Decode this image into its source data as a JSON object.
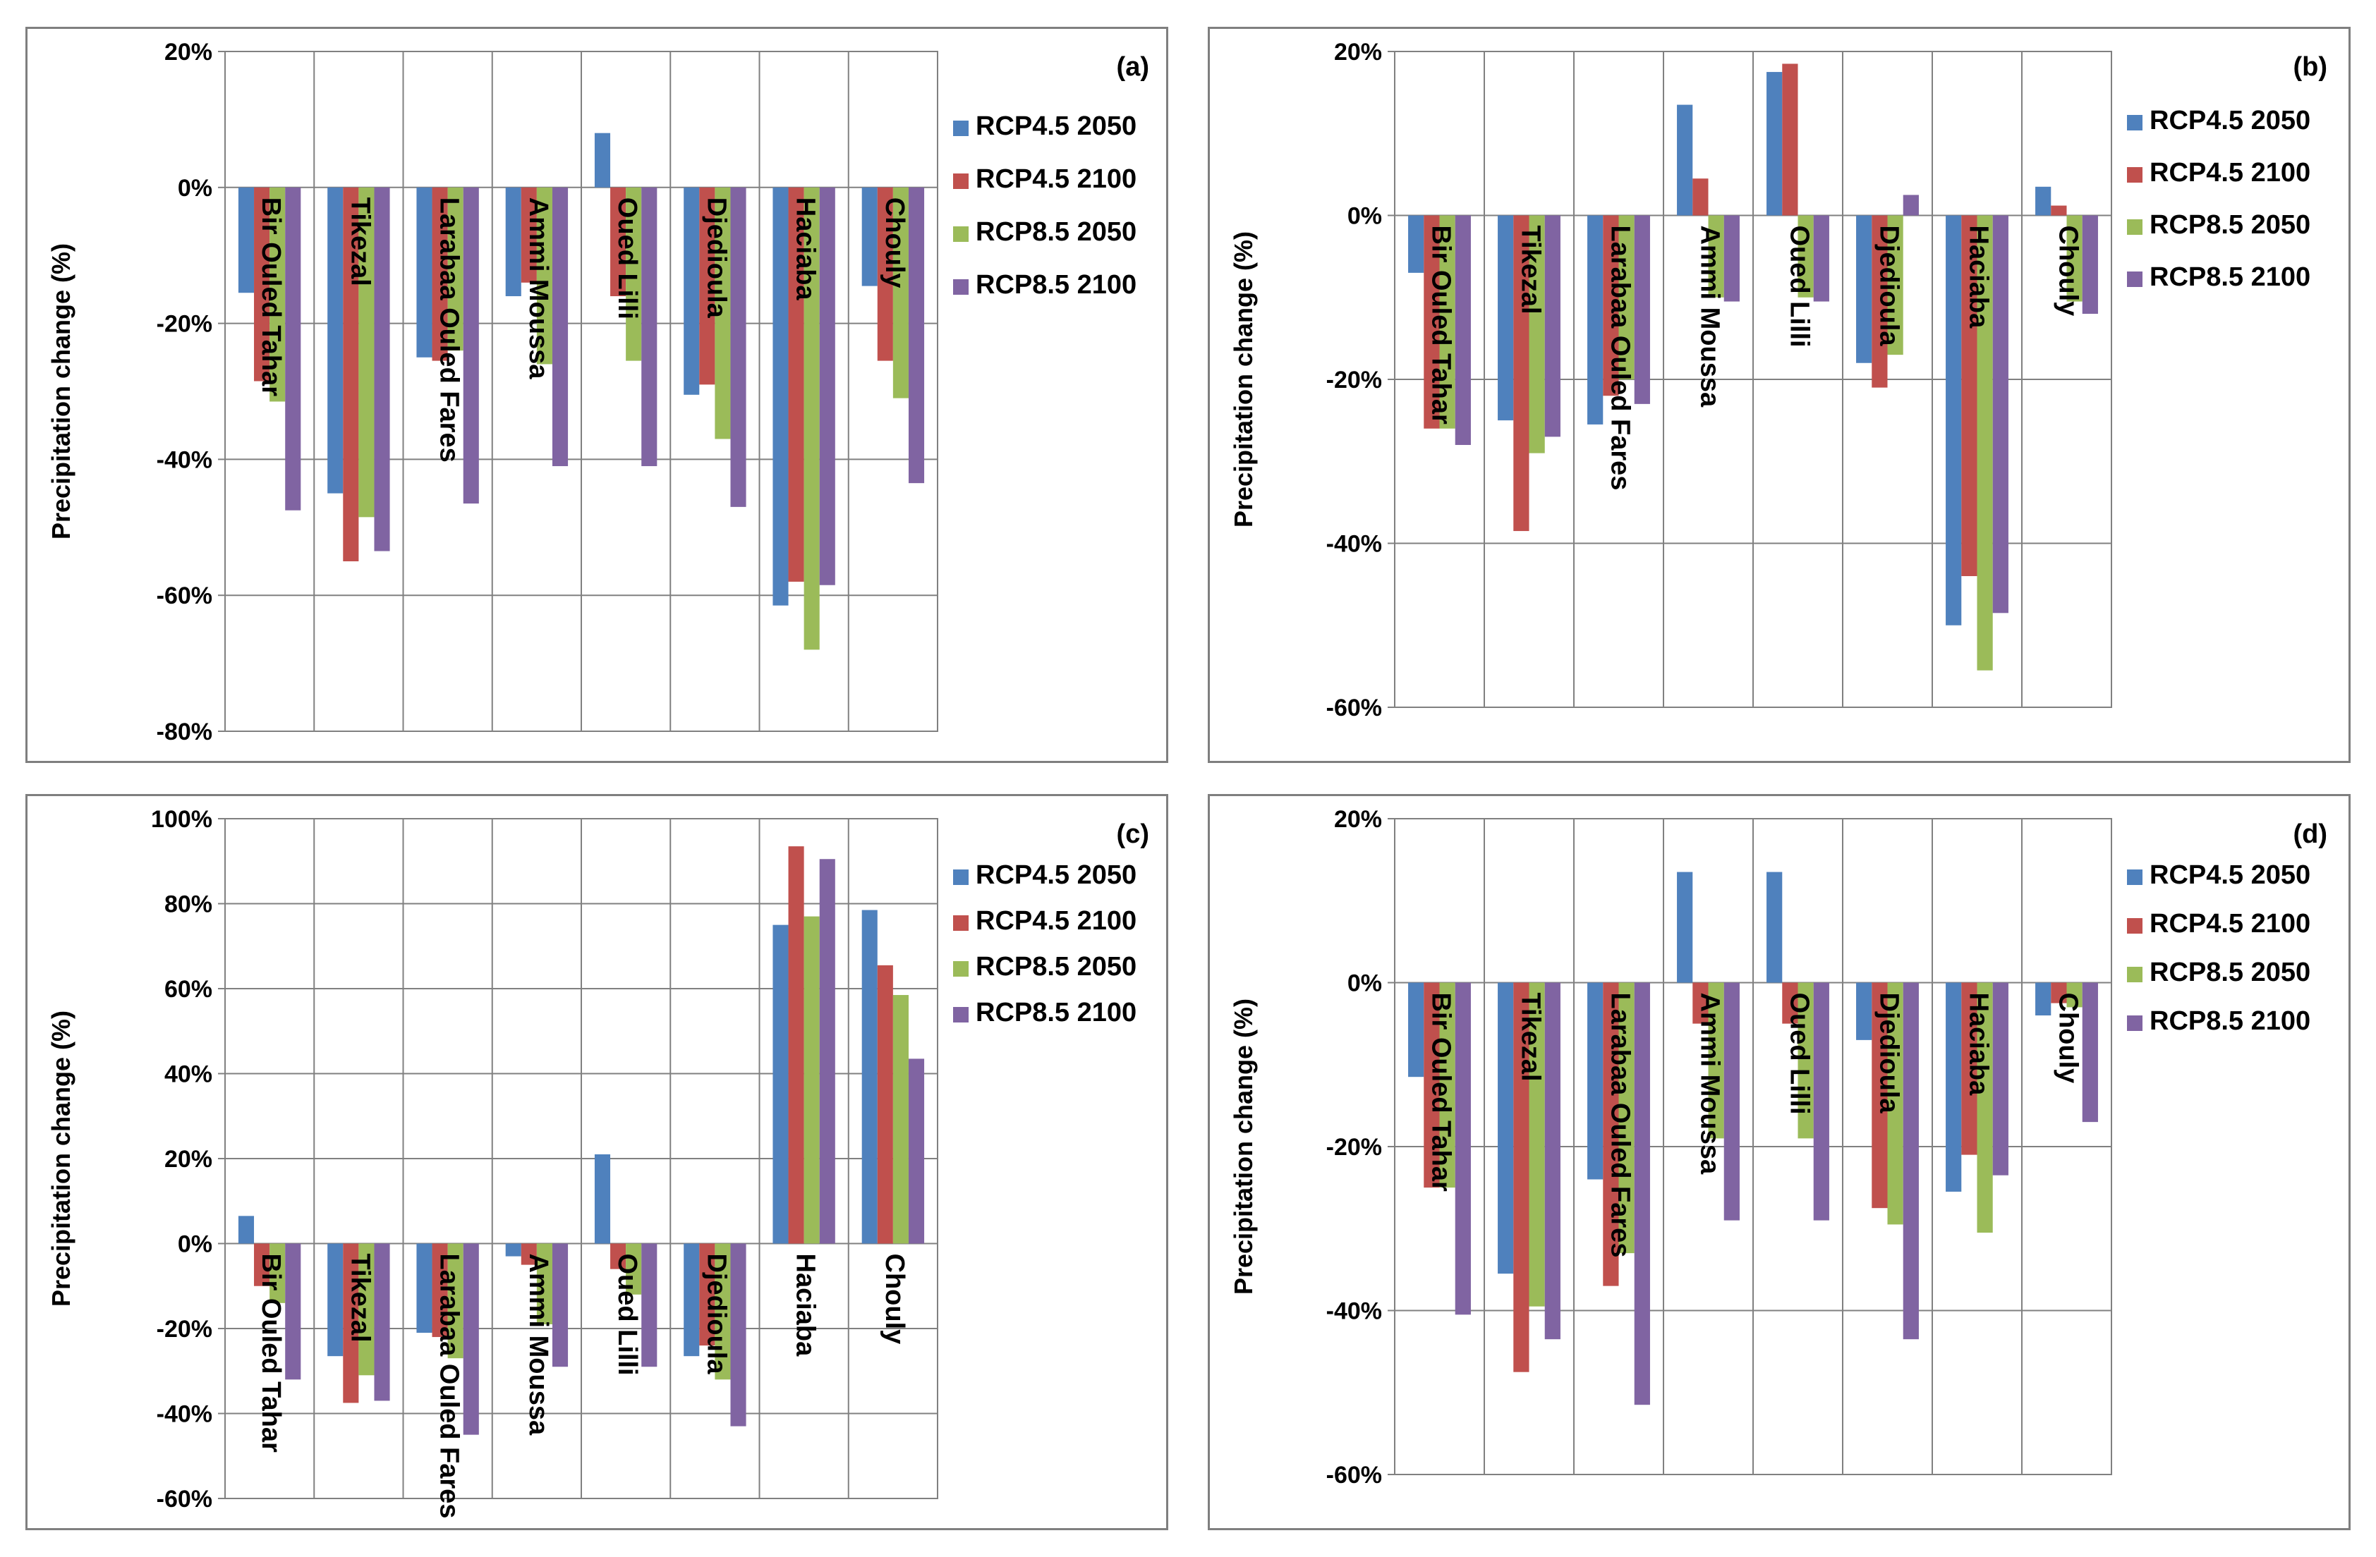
{
  "colors": {
    "RCP4.5 2050": "#4f81bd",
    "RCP4.5 2100": "#c0504d",
    "RCP8.5 2050": "#9bbb59",
    "RCP8.5 2100": "#8064a2"
  },
  "chart_data": [
    {
      "type": "bar",
      "panel_label": "(a)",
      "ylabel": "Precipitation change (%)",
      "ylim": [
        -80,
        20
      ],
      "yticks": [
        20,
        0,
        -20,
        -40,
        -60,
        -80
      ],
      "ytick_labels": [
        "20%",
        "0%",
        "-20%",
        "-40%",
        "-60%",
        "-80%"
      ],
      "categories": [
        "Bir Ouled Tahar",
        "Tikezal",
        "Larabaa Ouled Fares",
        "Ammi Moussa",
        "Oued Lilli",
        "Djedioula",
        "Haciaba",
        "Chouly"
      ],
      "series": [
        {
          "name": "RCP4.5 2050",
          "values": [
            -15.5,
            -45,
            -25,
            -16,
            8,
            -30.5,
            -61.5,
            -14.5
          ]
        },
        {
          "name": "RCP4.5 2100",
          "values": [
            -28.5,
            -55,
            -25.5,
            -14,
            -16,
            -29,
            -58,
            -25.5
          ]
        },
        {
          "name": "RCP8.5 2050",
          "values": [
            -31.5,
            -48.5,
            -24,
            -26,
            -25.5,
            -37,
            -68,
            -31
          ]
        },
        {
          "name": "RCP8.5 2100",
          "values": [
            -47.5,
            -53.5,
            -46.5,
            -41,
            -41,
            -47,
            -58.5,
            -43.5
          ]
        }
      ]
    },
    {
      "type": "bar",
      "panel_label": "(b)",
      "ylabel": "Precipitation change (%)",
      "ylim": [
        -60,
        20
      ],
      "yticks": [
        20,
        0,
        -20,
        -40,
        -60
      ],
      "ytick_labels": [
        "20%",
        "0%",
        "-20%",
        "-40%",
        "-60%"
      ],
      "categories": [
        "Bir Ouled Tahar",
        "Tikezal",
        "Larabaa Ouled Fares",
        "Ammi Moussa",
        "Oued Lilli",
        "Djedioula",
        "Haciaba",
        "Chouly"
      ],
      "series": [
        {
          "name": "RCP4.5 2050",
          "values": [
            -7,
            -25,
            -25.5,
            13.5,
            17.5,
            -18,
            -50,
            3.5
          ]
        },
        {
          "name": "RCP4.5 2100",
          "values": [
            -26,
            -38.5,
            -22,
            4.5,
            18.5,
            -21,
            -44,
            1.2
          ]
        },
        {
          "name": "RCP8.5 2050",
          "values": [
            -26,
            -29,
            -20,
            -10,
            -10,
            -17,
            -55.5,
            -10.5
          ]
        },
        {
          "name": "RCP8.5 2100",
          "values": [
            -28,
            -27,
            -23,
            -10.5,
            -10.5,
            2.5,
            -48.5,
            -12
          ]
        }
      ]
    },
    {
      "type": "bar",
      "panel_label": "(c)",
      "ylabel": "Precipitation change (%)",
      "ylim": [
        -60,
        100
      ],
      "yticks": [
        100,
        80,
        60,
        40,
        20,
        0,
        -20,
        -40,
        -60
      ],
      "ytick_labels": [
        "100%",
        "80%",
        "60%",
        "40%",
        "20%",
        "0%",
        "-20%",
        "-40%",
        "-60%"
      ],
      "categories": [
        "Bir Ouled Tahar",
        "Tikezal",
        "Larabaa Ouled Fares",
        "Ammi Moussa",
        "Oued Lilli",
        "Djedioula",
        "Haciaba",
        "Chouly"
      ],
      "series": [
        {
          "name": "RCP4.5 2050",
          "values": [
            6.5,
            -26.5,
            -21,
            -3,
            21,
            -26.5,
            75,
            78.5
          ]
        },
        {
          "name": "RCP4.5 2100",
          "values": [
            -10,
            -37.5,
            -22,
            -5,
            -6,
            -24,
            93.5,
            65.5
          ]
        },
        {
          "name": "RCP8.5 2050",
          "values": [
            -14,
            -31,
            -27,
            -19,
            -12,
            -32,
            77,
            58.5
          ]
        },
        {
          "name": "RCP8.5 2100",
          "values": [
            -32,
            -37,
            -45,
            -29,
            -29,
            -43,
            90.5,
            43.5
          ]
        }
      ]
    },
    {
      "type": "bar",
      "panel_label": "(d)",
      "ylabel": "Precipitation change (%)",
      "ylim": [
        -60,
        20
      ],
      "yticks": [
        20,
        0,
        -20,
        -40,
        -60
      ],
      "ytick_labels": [
        "20%",
        "0%",
        "-20%",
        "-40%",
        "-60%"
      ],
      "categories": [
        "Bir Ouled Tahar",
        "Tikezal",
        "Larabaa Ouled Fares",
        "Ammi Moussa",
        "Oued Lilli",
        "Djedioula",
        "Haciaba",
        "Chouly"
      ],
      "series": [
        {
          "name": "RCP4.5 2050",
          "values": [
            -11.5,
            -35.5,
            -24,
            13.5,
            13.5,
            -7,
            -25.5,
            -4
          ]
        },
        {
          "name": "RCP4.5 2100",
          "values": [
            -25,
            -47.5,
            -37,
            -5,
            -5,
            -27.5,
            -21,
            -2.5
          ]
        },
        {
          "name": "RCP8.5 2050",
          "values": [
            -25,
            -39.5,
            -33,
            -19,
            -19,
            -29.5,
            -30.5,
            -3
          ]
        },
        {
          "name": "RCP8.5 2100",
          "values": [
            -40.5,
            -43.5,
            -51.5,
            -29,
            -29,
            -43.5,
            -23.5,
            -17
          ]
        }
      ]
    }
  ]
}
